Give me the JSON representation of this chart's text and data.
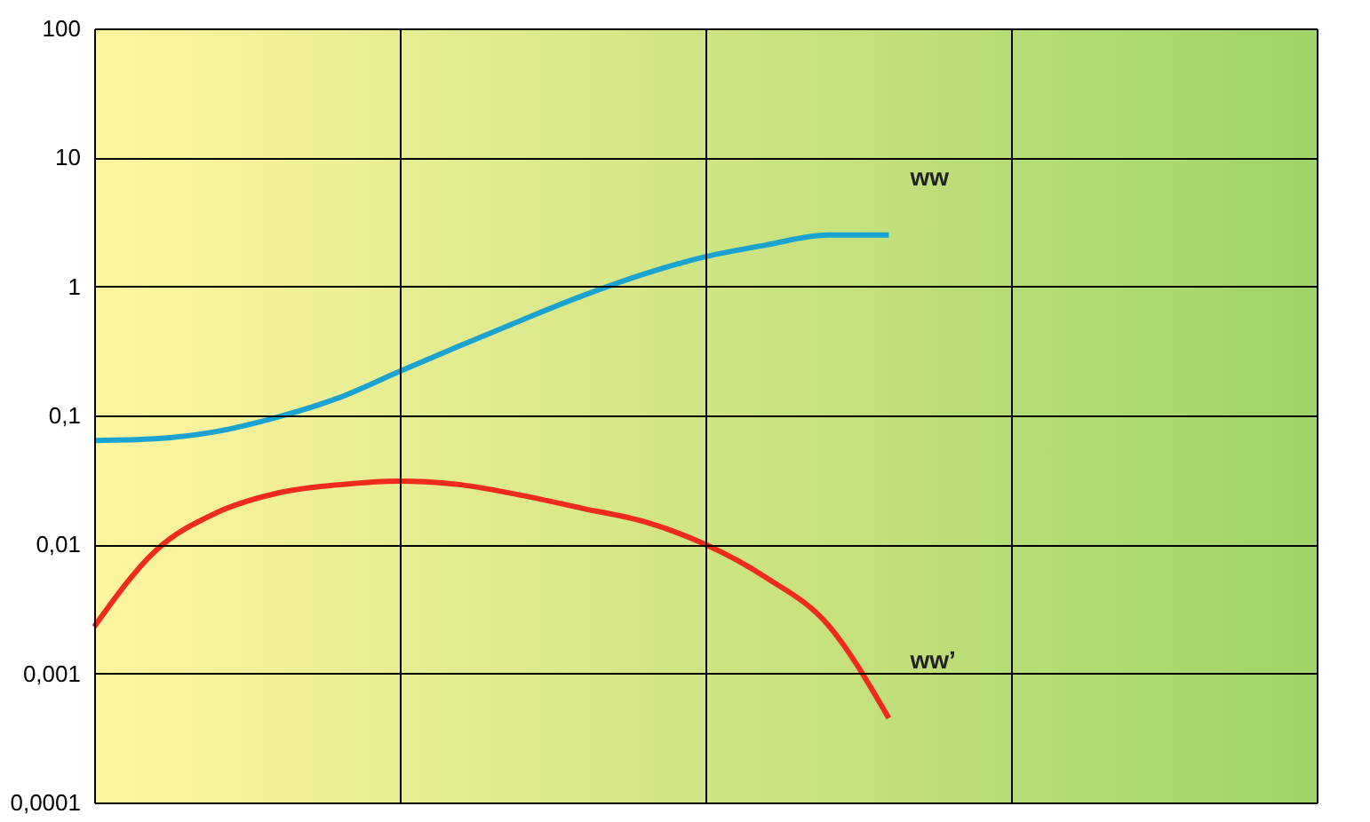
{
  "chart_data": {
    "type": "line",
    "categories": [
      null,
      null,
      null,
      null,
      null,
      null,
      null,
      null,
      null,
      null,
      null,
      null,
      null,
      null,
      null,
      null,
      null,
      null,
      null,
      null,
      null
    ],
    "series": [
      {
        "name": "ww",
        "color": "#1aa3d1",
        "values": [
          0.064,
          0.066,
          0.075,
          0.097,
          0.137,
          0.22,
          0.35,
          0.55,
          0.85,
          1.25,
          1.7,
          2.1,
          2.5,
          2.5,
          null,
          null,
          null,
          null,
          null,
          null,
          null
        ]
      },
      {
        "name": "ww’",
        "color": "#f02a1c",
        "values": [
          0.0023,
          0.0089,
          0.0176,
          0.025,
          0.029,
          0.031,
          0.029,
          0.024,
          0.019,
          0.015,
          0.01,
          0.0055,
          0.0024,
          0.00045,
          null,
          null,
          null,
          null,
          null,
          null,
          null
        ]
      }
    ],
    "log": "y",
    "ylim": [
      0.0001,
      100
    ],
    "yticks": [
      {
        "value": 0.0001,
        "label": "0,0001"
      },
      {
        "value": 0.001,
        "label": "0,001"
      },
      {
        "value": 0.01,
        "label": "0,01"
      },
      {
        "value": 0.1,
        "label": "0,1"
      },
      1,
      10,
      100
    ],
    "grid": true,
    "tick_labels": "y",
    "marker": "none",
    "line_style": "solid"
  }
}
